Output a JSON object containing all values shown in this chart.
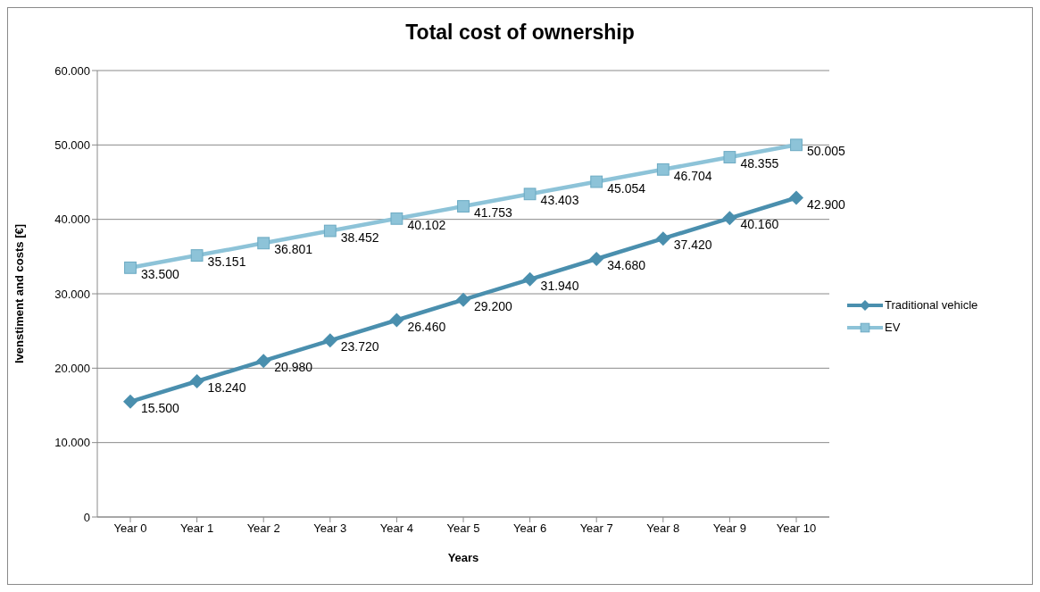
{
  "chart_data": {
    "type": "line",
    "title": "Total cost of ownership",
    "xlabel": "Years",
    "ylabel": "Ivenstiment and costs [€]",
    "categories": [
      "Year 0",
      "Year 1",
      "Year 2",
      "Year 3",
      "Year 4",
      "Year 5",
      "Year 6",
      "Year 7",
      "Year 8",
      "Year 9",
      "Year 10"
    ],
    "series": [
      {
        "name": "Traditional vehicle",
        "color": "#4a8fae",
        "marker": "diamond",
        "values": [
          15500,
          18240,
          20980,
          23720,
          26460,
          29200,
          31940,
          34680,
          37420,
          40160,
          42900
        ],
        "value_labels": [
          "15.500",
          "18.240",
          "20.980",
          "23.720",
          "26.460",
          "29.200",
          "31.940",
          "34.680",
          "37.420",
          "40.160",
          "42.900"
        ]
      },
      {
        "name": "EV",
        "color": "#8dc3d8",
        "marker": "square",
        "values": [
          33500,
          35151,
          36801,
          38452,
          40102,
          41753,
          43403,
          45054,
          46704,
          48355,
          50005
        ],
        "value_labels": [
          "33.500",
          "35.151",
          "36.801",
          "38.452",
          "40.102",
          "41.753",
          "43.403",
          "45.054",
          "46.704",
          "48.355",
          "50.005"
        ]
      }
    ],
    "ylim": [
      0,
      60000
    ],
    "yticks": [
      {
        "value": 0,
        "label": "0"
      },
      {
        "value": 10000,
        "label": "10.000"
      },
      {
        "value": 20000,
        "label": "20.000"
      },
      {
        "value": 30000,
        "label": "30.000"
      },
      {
        "value": 40000,
        "label": "40.000"
      },
      {
        "value": 50000,
        "label": "50.000"
      },
      {
        "value": 60000,
        "label": "60.000"
      }
    ],
    "grid": "y",
    "legend": "right",
    "line_style": "solid"
  }
}
